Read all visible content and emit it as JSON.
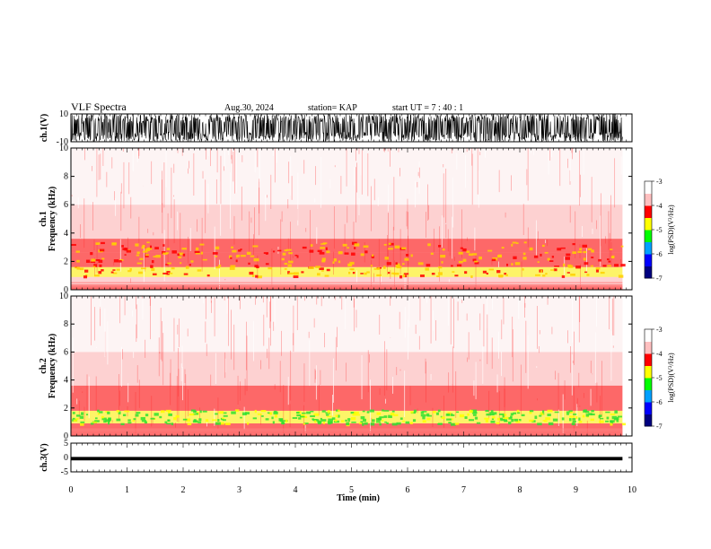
{
  "header": {
    "title": "VLF Spectra",
    "date": "Aug.30, 2024",
    "station": "station= KAP",
    "start": "start  UT  =   7 : 40 : 1"
  },
  "chart_data": [
    {
      "type": "line",
      "panel": "ch1_waveform",
      "ylabel": "ch.1(V)",
      "yticks": [
        "10",
        "-10"
      ],
      "ylim": [
        -10,
        10
      ],
      "xlim": [
        0,
        10
      ],
      "x_end": 9.83,
      "description_of_signal": "saturated noise between -10 and 10",
      "color": "#000000"
    },
    {
      "type": "heatmap",
      "panel": "ch1_spectrogram",
      "ylabel": "ch.1 Frequency  (kHz)",
      "yticks": [
        "0",
        "2",
        "4",
        "6",
        "8",
        "10"
      ],
      "ylim": [
        0,
        10
      ],
      "xlim": [
        0,
        10
      ],
      "x_end": 9.83,
      "bands": [
        {
          "from": 0.0,
          "to": 0.3,
          "level": -4.2
        },
        {
          "from": 0.3,
          "to": 0.9,
          "level": -3.8
        },
        {
          "from": 0.9,
          "to": 1.6,
          "level": -4.5
        },
        {
          "from": 1.6,
          "to": 2.6,
          "level": -4.2
        },
        {
          "from": 2.6,
          "to": 3.6,
          "level": -4.0
        },
        {
          "from": 3.6,
          "to": 6.0,
          "level": -3.5
        },
        {
          "from": 6.0,
          "to": 10.0,
          "level": -3.2
        }
      ]
    },
    {
      "type": "heatmap",
      "panel": "ch2_spectrogram",
      "ylabel": "ch.2 Frequency  (kHz)",
      "yticks": [
        "0",
        "2",
        "4",
        "6",
        "8",
        "10"
      ],
      "ylim": [
        0,
        10
      ],
      "xlim": [
        0,
        10
      ],
      "x_end": 9.83,
      "bands": [
        {
          "from": 0.0,
          "to": 0.4,
          "level": -4.0
        },
        {
          "from": 0.4,
          "to": 0.9,
          "level": -4.3
        },
        {
          "from": 0.9,
          "to": 1.8,
          "level": -4.9
        },
        {
          "from": 1.8,
          "to": 3.6,
          "level": -4.2
        },
        {
          "from": 3.6,
          "to": 6.0,
          "level": -3.6
        },
        {
          "from": 6.0,
          "to": 10.0,
          "level": -3.2
        }
      ]
    },
    {
      "type": "line",
      "panel": "ch3_waveform",
      "ylabel": "ch.3(V)",
      "yticks": [
        "5",
        "0",
        "-5"
      ],
      "ylim": [
        -5,
        5
      ],
      "xlim": [
        0,
        10
      ],
      "x_end": 9.83,
      "band": [
        -1.0,
        0.2
      ],
      "color": "#000000"
    },
    {
      "type": "colorbar",
      "label": "log(PSD)(V²/Hz)",
      "ticks": [
        "-3",
        "-4",
        "-5",
        "-6",
        "-7"
      ],
      "range": [
        -7,
        -3
      ],
      "colors": [
        "#000080",
        "#0000ff",
        "#00a0ff",
        "#00ff00",
        "#ffff00",
        "#ff0000",
        "#ffc0c0",
        "#ffffff"
      ]
    }
  ],
  "xaxis": {
    "label": "Time  (min)",
    "ticks": [
      "0",
      "1",
      "2",
      "3",
      "4",
      "5",
      "6",
      "7",
      "8",
      "9",
      "10"
    ]
  }
}
